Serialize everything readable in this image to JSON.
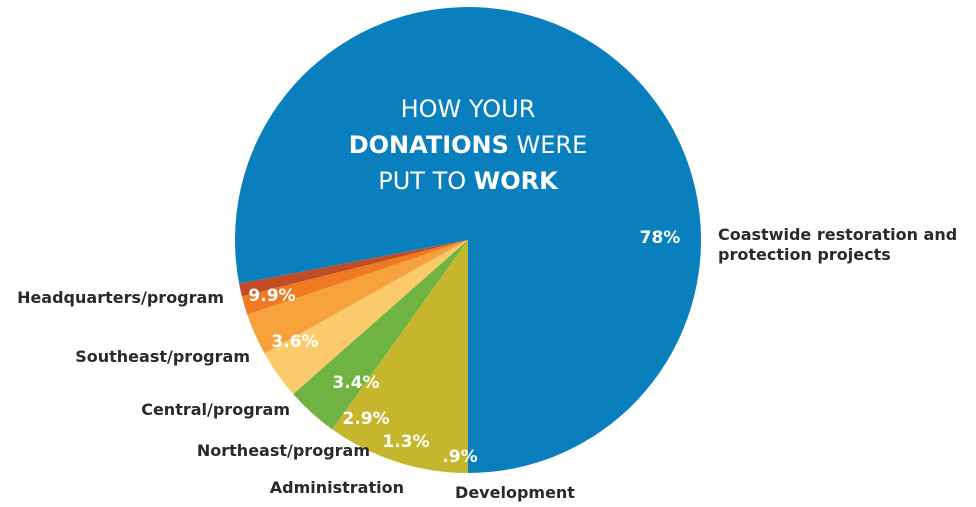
{
  "chart_data": {
    "type": "pie",
    "title_parts": [
      [
        {
          "text": "HOW YOUR",
          "bold": false
        }
      ],
      [
        {
          "text": "DONATIONS",
          "bold": true
        },
        {
          "text": " WERE",
          "bold": false
        }
      ],
      [
        {
          "text": "PUT TO ",
          "bold": false
        },
        {
          "text": "WORK",
          "bold": true
        }
      ]
    ],
    "slices": [
      {
        "name": "Coastwide restoration and protection projects",
        "label_lines": [
          "Coastwide restoration and",
          "protection projects"
        ],
        "value": 78,
        "value_label": "78%",
        "color": "#0a7fbd"
      },
      {
        "name": "Development",
        "label_lines": [
          "Development"
        ],
        "value": 0.9,
        "value_label": ".9%",
        "color": "#c04d26"
      },
      {
        "name": "Administration",
        "label_lines": [
          "Administration"
        ],
        "value": 1.3,
        "value_label": "1.3%",
        "color": "#ef7a22"
      },
      {
        "name": "Northeast/program",
        "label_lines": [
          "Northeast/program"
        ],
        "value": 2.9,
        "value_label": "2.9%",
        "color": "#f6a23c"
      },
      {
        "name": "Central/program",
        "label_lines": [
          "Central/program"
        ],
        "value": 3.4,
        "value_label": "3.4%",
        "color": "#fbcb6b"
      },
      {
        "name": "Southeast/program",
        "label_lines": [
          "Southeast/program"
        ],
        "value": 3.6,
        "value_label": "3.6%",
        "color": "#6fb443"
      },
      {
        "name": "Headquarters/program",
        "label_lines": [
          "Headquarters/program"
        ],
        "value": 9.9,
        "value_label": "9.9%",
        "color": "#c5b62e"
      }
    ]
  }
}
